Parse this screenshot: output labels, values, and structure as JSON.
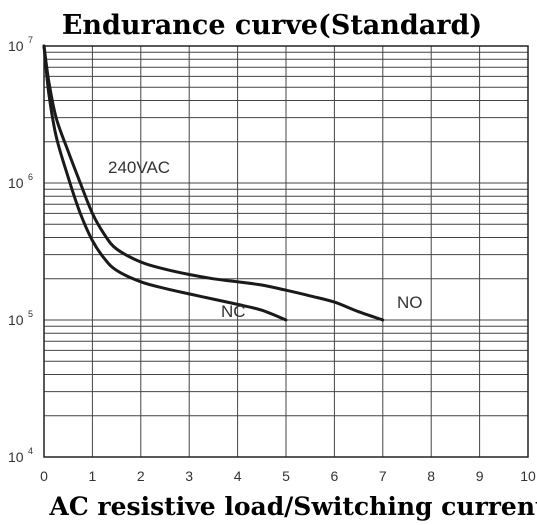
{
  "chart_data": {
    "type": "line",
    "title": "Endurance curve(Standard)",
    "xlabel": "AC resistive load/Switching current",
    "ylabel": "",
    "x_ticks": [
      "0",
      "2",
      "4",
      "6",
      "8",
      "10"
    ],
    "x_minor_ticks": [
      "1",
      "3",
      "5",
      "7",
      "9"
    ],
    "y_ticks": [
      {
        "base": "10",
        "exp": "4"
      },
      {
        "base": "10",
        "exp": "5"
      },
      {
        "base": "10",
        "exp": "6"
      },
      {
        "base": "10",
        "exp": "7"
      }
    ],
    "xlim": [
      0,
      10
    ],
    "ylim": [
      10000,
      10000000
    ],
    "y_scale": "log",
    "grid": true,
    "annotation": "240VAC",
    "series": [
      {
        "name": "NO",
        "x": [
          0,
          0.1,
          0.25,
          0.5,
          0.75,
          1.0,
          1.25,
          1.5,
          2.0,
          2.5,
          3.0,
          3.5,
          4.0,
          4.5,
          5.0,
          5.5,
          6.0,
          6.5,
          7.0
        ],
        "y": [
          10000000,
          5500000,
          3000000,
          1700000,
          1000000,
          600000,
          420000,
          330000,
          265000,
          235000,
          215000,
          200000,
          190000,
          180000,
          165000,
          150000,
          135000,
          115000,
          100000
        ]
      },
      {
        "name": "NC",
        "x": [
          0,
          0.1,
          0.25,
          0.5,
          0.75,
          1.0,
          1.25,
          1.5,
          2.0,
          2.5,
          3.0,
          3.5,
          4.0,
          4.5,
          5.0
        ],
        "y": [
          10000000,
          4500000,
          2200000,
          1100000,
          600000,
          380000,
          280000,
          230000,
          190000,
          170000,
          155000,
          142000,
          130000,
          118000,
          100000
        ]
      }
    ]
  }
}
